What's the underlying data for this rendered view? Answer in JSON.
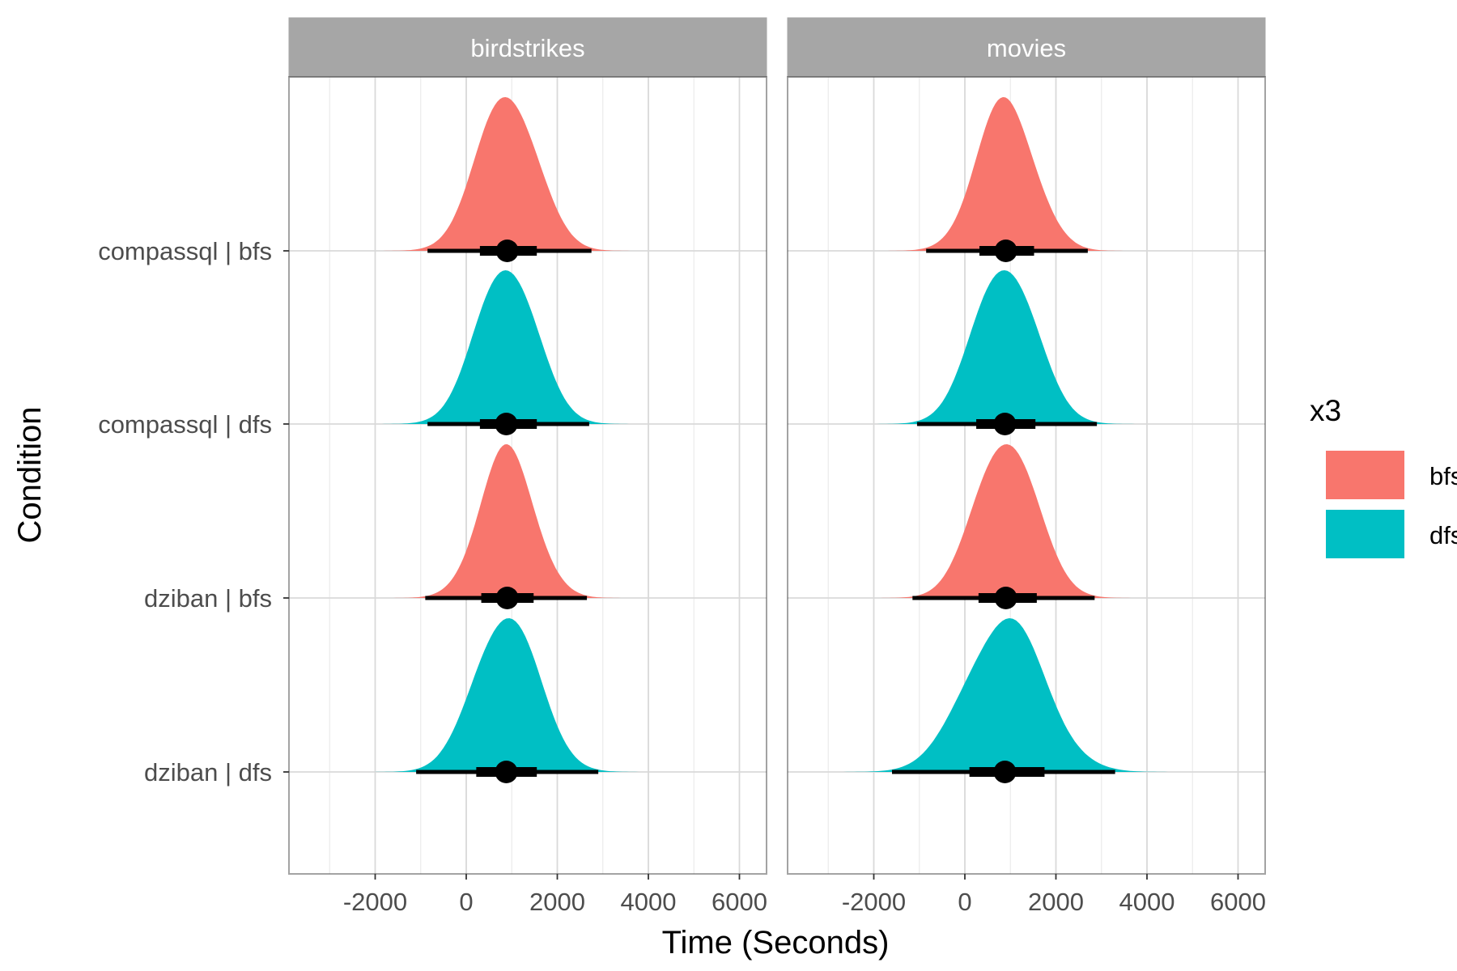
{
  "chart_data": {
    "type": "area",
    "subtype": "halfeye-density-with-interval",
    "xlabel": "Time (Seconds)",
    "ylabel": "Condition",
    "xlim": [
      -4000,
      6600
    ],
    "x_ticks": [
      -2000,
      0,
      2000,
      4000,
      6000
    ],
    "x_tick_labels": [
      "-2000",
      "0",
      "2000",
      "4000",
      "6000"
    ],
    "grid": true,
    "panels": [
      "birdstrikes",
      "movies"
    ],
    "conditions": [
      "compassql | bfs",
      "compassql | dfs",
      "dziban | bfs",
      "dziban | dfs"
    ],
    "legend": {
      "title": "x3",
      "position": "right",
      "entries": [
        {
          "label": "bfs",
          "color": "#F8766D"
        },
        {
          "label": "dfs",
          "color": "#00BFC4"
        }
      ]
    },
    "series": [
      {
        "panel": "birdstrikes",
        "condition": "compassql | bfs",
        "fill": "bfs",
        "median": 900,
        "interval_66": [
          300,
          1550
        ],
        "interval_95": [
          -850,
          2750
        ],
        "density_range": [
          -2700,
          4300
        ]
      },
      {
        "panel": "birdstrikes",
        "condition": "compassql | dfs",
        "fill": "dfs",
        "median": 880,
        "interval_66": [
          300,
          1550
        ],
        "interval_95": [
          -850,
          2700
        ],
        "density_range": [
          -2900,
          4500
        ]
      },
      {
        "panel": "birdstrikes",
        "condition": "dziban | bfs",
        "fill": "bfs",
        "median": 900,
        "interval_66": [
          330,
          1480
        ],
        "interval_95": [
          -900,
          2650
        ],
        "density_range": [
          -2000,
          4100
        ]
      },
      {
        "panel": "birdstrikes",
        "condition": "dziban | dfs",
        "fill": "dfs",
        "median": 880,
        "interval_66": [
          220,
          1550
        ],
        "interval_95": [
          -1100,
          2900
        ],
        "density_range": [
          -3200,
          5100
        ]
      },
      {
        "panel": "movies",
        "condition": "compassql | bfs",
        "fill": "bfs",
        "median": 900,
        "interval_66": [
          320,
          1520
        ],
        "interval_95": [
          -850,
          2700
        ],
        "density_range": [
          -2300,
          4300
        ]
      },
      {
        "panel": "movies",
        "condition": "compassql | dfs",
        "fill": "dfs",
        "median": 880,
        "interval_66": [
          250,
          1550
        ],
        "interval_95": [
          -1050,
          2900
        ],
        "density_range": [
          -2900,
          4900
        ]
      },
      {
        "panel": "movies",
        "condition": "dziban | bfs",
        "fill": "bfs",
        "median": 900,
        "interval_66": [
          300,
          1580
        ],
        "interval_95": [
          -1150,
          2850
        ],
        "density_range": [
          -3000,
          4600
        ]
      },
      {
        "panel": "movies",
        "condition": "dziban | dfs",
        "fill": "dfs",
        "median": 880,
        "interval_66": [
          100,
          1750
        ],
        "interval_95": [
          -1600,
          3300
        ],
        "density_range": [
          -3500,
          5600
        ]
      }
    ]
  }
}
